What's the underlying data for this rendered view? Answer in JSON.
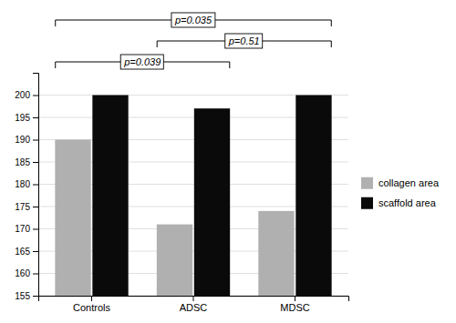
{
  "chart_data": {
    "type": "bar",
    "categories": [
      "Controls",
      "ADSC",
      "MDSC"
    ],
    "series": [
      {
        "name": "collagen area",
        "color": "#b0b0b0",
        "values": [
          190,
          171,
          174
        ]
      },
      {
        "name": "scaffold area",
        "color": "#0a0a0a",
        "values": [
          200,
          197,
          200
        ]
      }
    ],
    "ylim": [
      155,
      205
    ],
    "yticks": [
      155,
      160,
      165,
      170,
      175,
      180,
      185,
      190,
      195,
      200
    ],
    "grid": true,
    "legend": "right",
    "annotations": [
      {
        "text": "p=0.039",
        "from": "Controls",
        "to": "ADSC"
      },
      {
        "text": "p=0.51",
        "from": "ADSC",
        "to": "MDSC"
      },
      {
        "text": "p=0.035",
        "from": "Controls",
        "to": "MDSC"
      }
    ]
  }
}
